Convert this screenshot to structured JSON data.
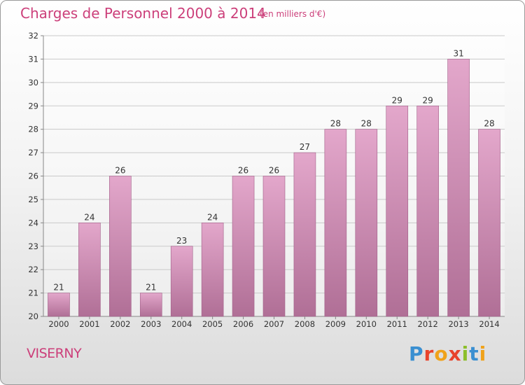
{
  "header": {
    "title": "Charges de Personnel 2000 à 2014",
    "subtitle": "(en milliers d'€)"
  },
  "footer": {
    "place": "VISERNY",
    "logo_letters": [
      {
        "ch": "P",
        "color": "#3a8fd1"
      },
      {
        "ch": "r",
        "color": "#e8432c"
      },
      {
        "ch": "o",
        "color": "#f0a21a"
      },
      {
        "ch": "x",
        "color": "#e8432c"
      },
      {
        "ch": "i",
        "color": "#8cbf2a"
      },
      {
        "ch": "t",
        "color": "#3a8fd1"
      },
      {
        "ch": "i",
        "color": "#f0a21a"
      }
    ]
  },
  "colors": {
    "accent": "#cc3f7a",
    "bar_top": "#e3a7cb",
    "bar_bottom": "#b06f96",
    "bar_edge": "#a15f88"
  },
  "chart_data": {
    "type": "bar",
    "categories": [
      "2000",
      "2001",
      "2002",
      "2003",
      "2004",
      "2005",
      "2006",
      "2007",
      "2008",
      "2009",
      "2010",
      "2011",
      "2012",
      "2013",
      "2014"
    ],
    "values": [
      21,
      24,
      26,
      21,
      23,
      24,
      26,
      26,
      27,
      28,
      28,
      29,
      29,
      31,
      28
    ],
    "data_labels": [
      "21",
      "24",
      "26",
      "21",
      "23",
      "24",
      "26",
      "26",
      "27",
      "28",
      "28",
      "29",
      "29",
      "31",
      "28"
    ],
    "ylim": [
      20,
      32
    ],
    "yticks": [
      "20",
      "21",
      "22",
      "23",
      "24",
      "25",
      "26",
      "27",
      "28",
      "29",
      "30",
      "31",
      "32"
    ],
    "grid": true
  }
}
